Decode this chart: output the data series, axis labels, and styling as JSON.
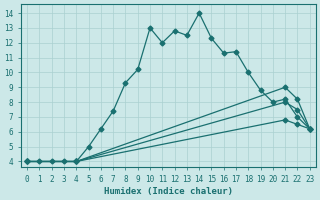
{
  "xlabel": "Humidex (Indice chaleur)",
  "bg_color": "#cce8e8",
  "grid_color": "#aad0d0",
  "line_color": "#1a7070",
  "xlim": [
    -0.5,
    23.5
  ],
  "ylim": [
    3.6,
    14.6
  ],
  "xticks": [
    0,
    1,
    2,
    3,
    4,
    5,
    6,
    7,
    8,
    9,
    10,
    11,
    12,
    13,
    14,
    15,
    16,
    17,
    18,
    19,
    20,
    21,
    22,
    23
  ],
  "yticks": [
    4,
    5,
    6,
    7,
    8,
    9,
    10,
    11,
    12,
    13,
    14
  ],
  "curve1_x": [
    0,
    1,
    2,
    3,
    4,
    5,
    6,
    7,
    8,
    9,
    10,
    11,
    12,
    13,
    14,
    15,
    16,
    17,
    18,
    19,
    20,
    21,
    22,
    23
  ],
  "curve1_y": [
    4.0,
    4.0,
    4.0,
    4.0,
    4.0,
    5.0,
    6.2,
    7.4,
    9.3,
    10.2,
    13.0,
    12.0,
    12.8,
    12.5,
    14.0,
    12.3,
    11.3,
    11.4,
    10.0,
    8.8,
    8.0,
    8.2,
    7.0,
    6.2
  ],
  "curve2_x": [
    0,
    4,
    21,
    22,
    23
  ],
  "curve2_y": [
    4.0,
    4.0,
    9.0,
    8.2,
    6.2
  ],
  "curve3_x": [
    0,
    4,
    21,
    22,
    23
  ],
  "curve3_y": [
    4.0,
    4.0,
    8.0,
    7.5,
    6.2
  ],
  "curve4_x": [
    0,
    4,
    21,
    22,
    23
  ],
  "curve4_y": [
    4.0,
    4.0,
    6.8,
    6.5,
    6.2
  ]
}
